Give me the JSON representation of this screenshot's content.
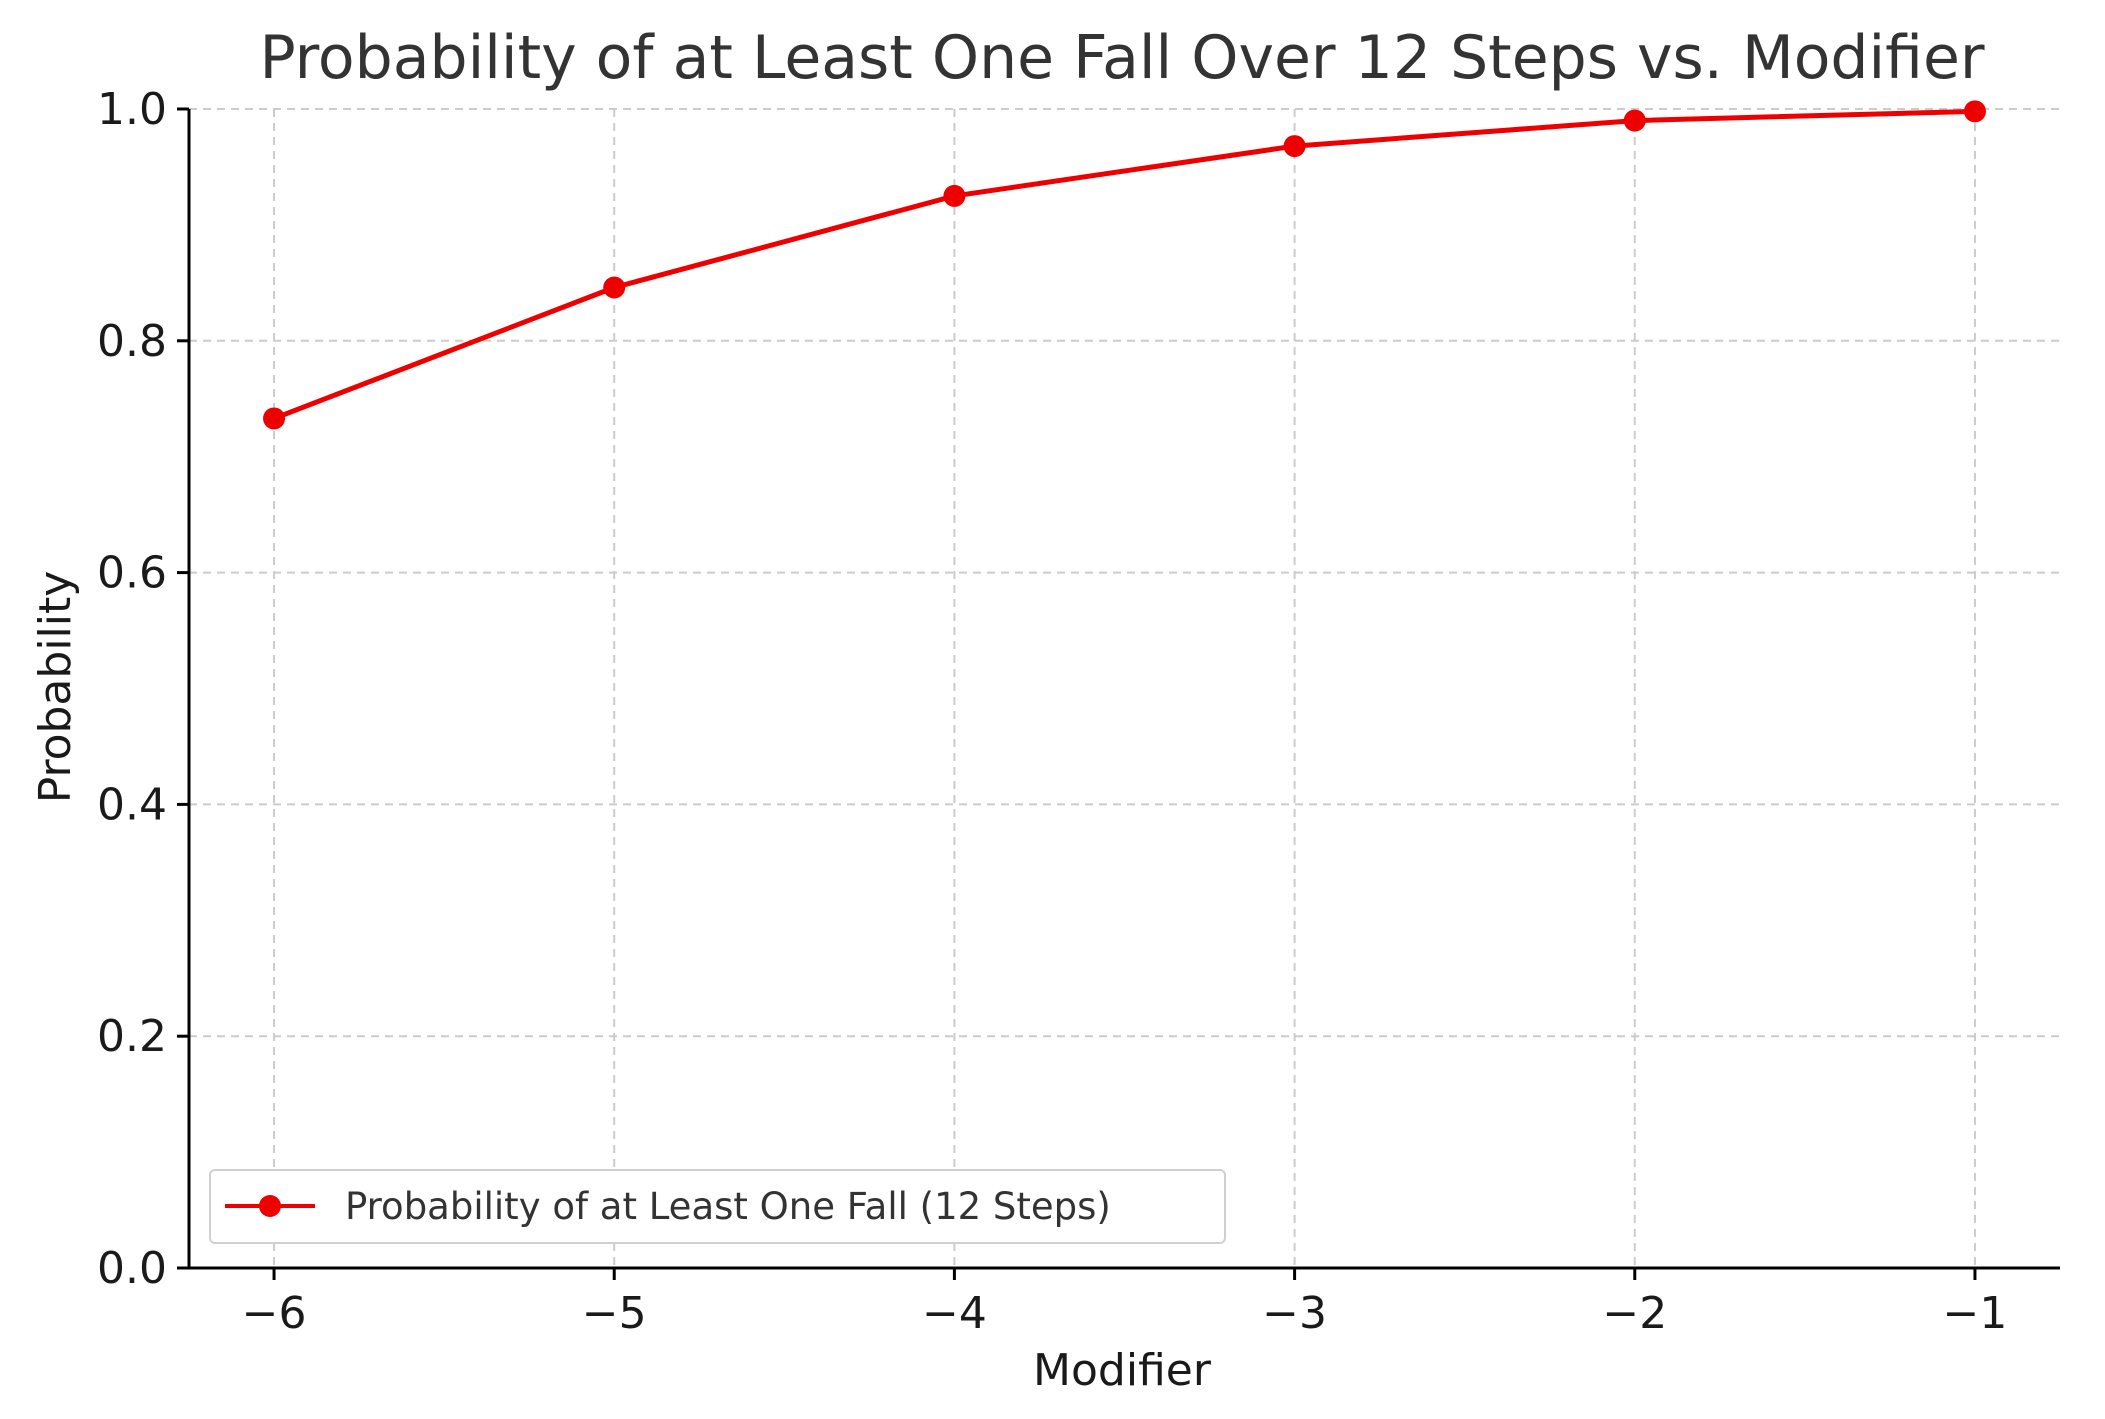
{
  "chart_data": {
    "type": "line",
    "title": "Probability of at Least One Fall Over 12 Steps vs. Modifier",
    "xlabel": "Modifier",
    "ylabel": "Probability",
    "x": [
      -6,
      -5,
      -4,
      -3,
      -2,
      -1
    ],
    "x_tick_labels": [
      "−6",
      "−5",
      "−4",
      "−3",
      "−2",
      "−1"
    ],
    "y_ticks": [
      0.0,
      0.2,
      0.4,
      0.6,
      0.8,
      1.0
    ],
    "y_tick_labels": [
      "0.0",
      "0.2",
      "0.4",
      "0.6",
      "0.8",
      "1.0"
    ],
    "xlim": [
      -6.25,
      -0.75
    ],
    "ylim": [
      0.0,
      1.0
    ],
    "grid": true,
    "legend_position": "lower-left",
    "series": [
      {
        "name": "Probability of at Least One Fall (12 Steps)",
        "color": "#ee0000",
        "marker": "circle",
        "values": [
          0.733,
          0.846,
          0.925,
          0.968,
          0.99,
          0.998
        ]
      }
    ]
  }
}
